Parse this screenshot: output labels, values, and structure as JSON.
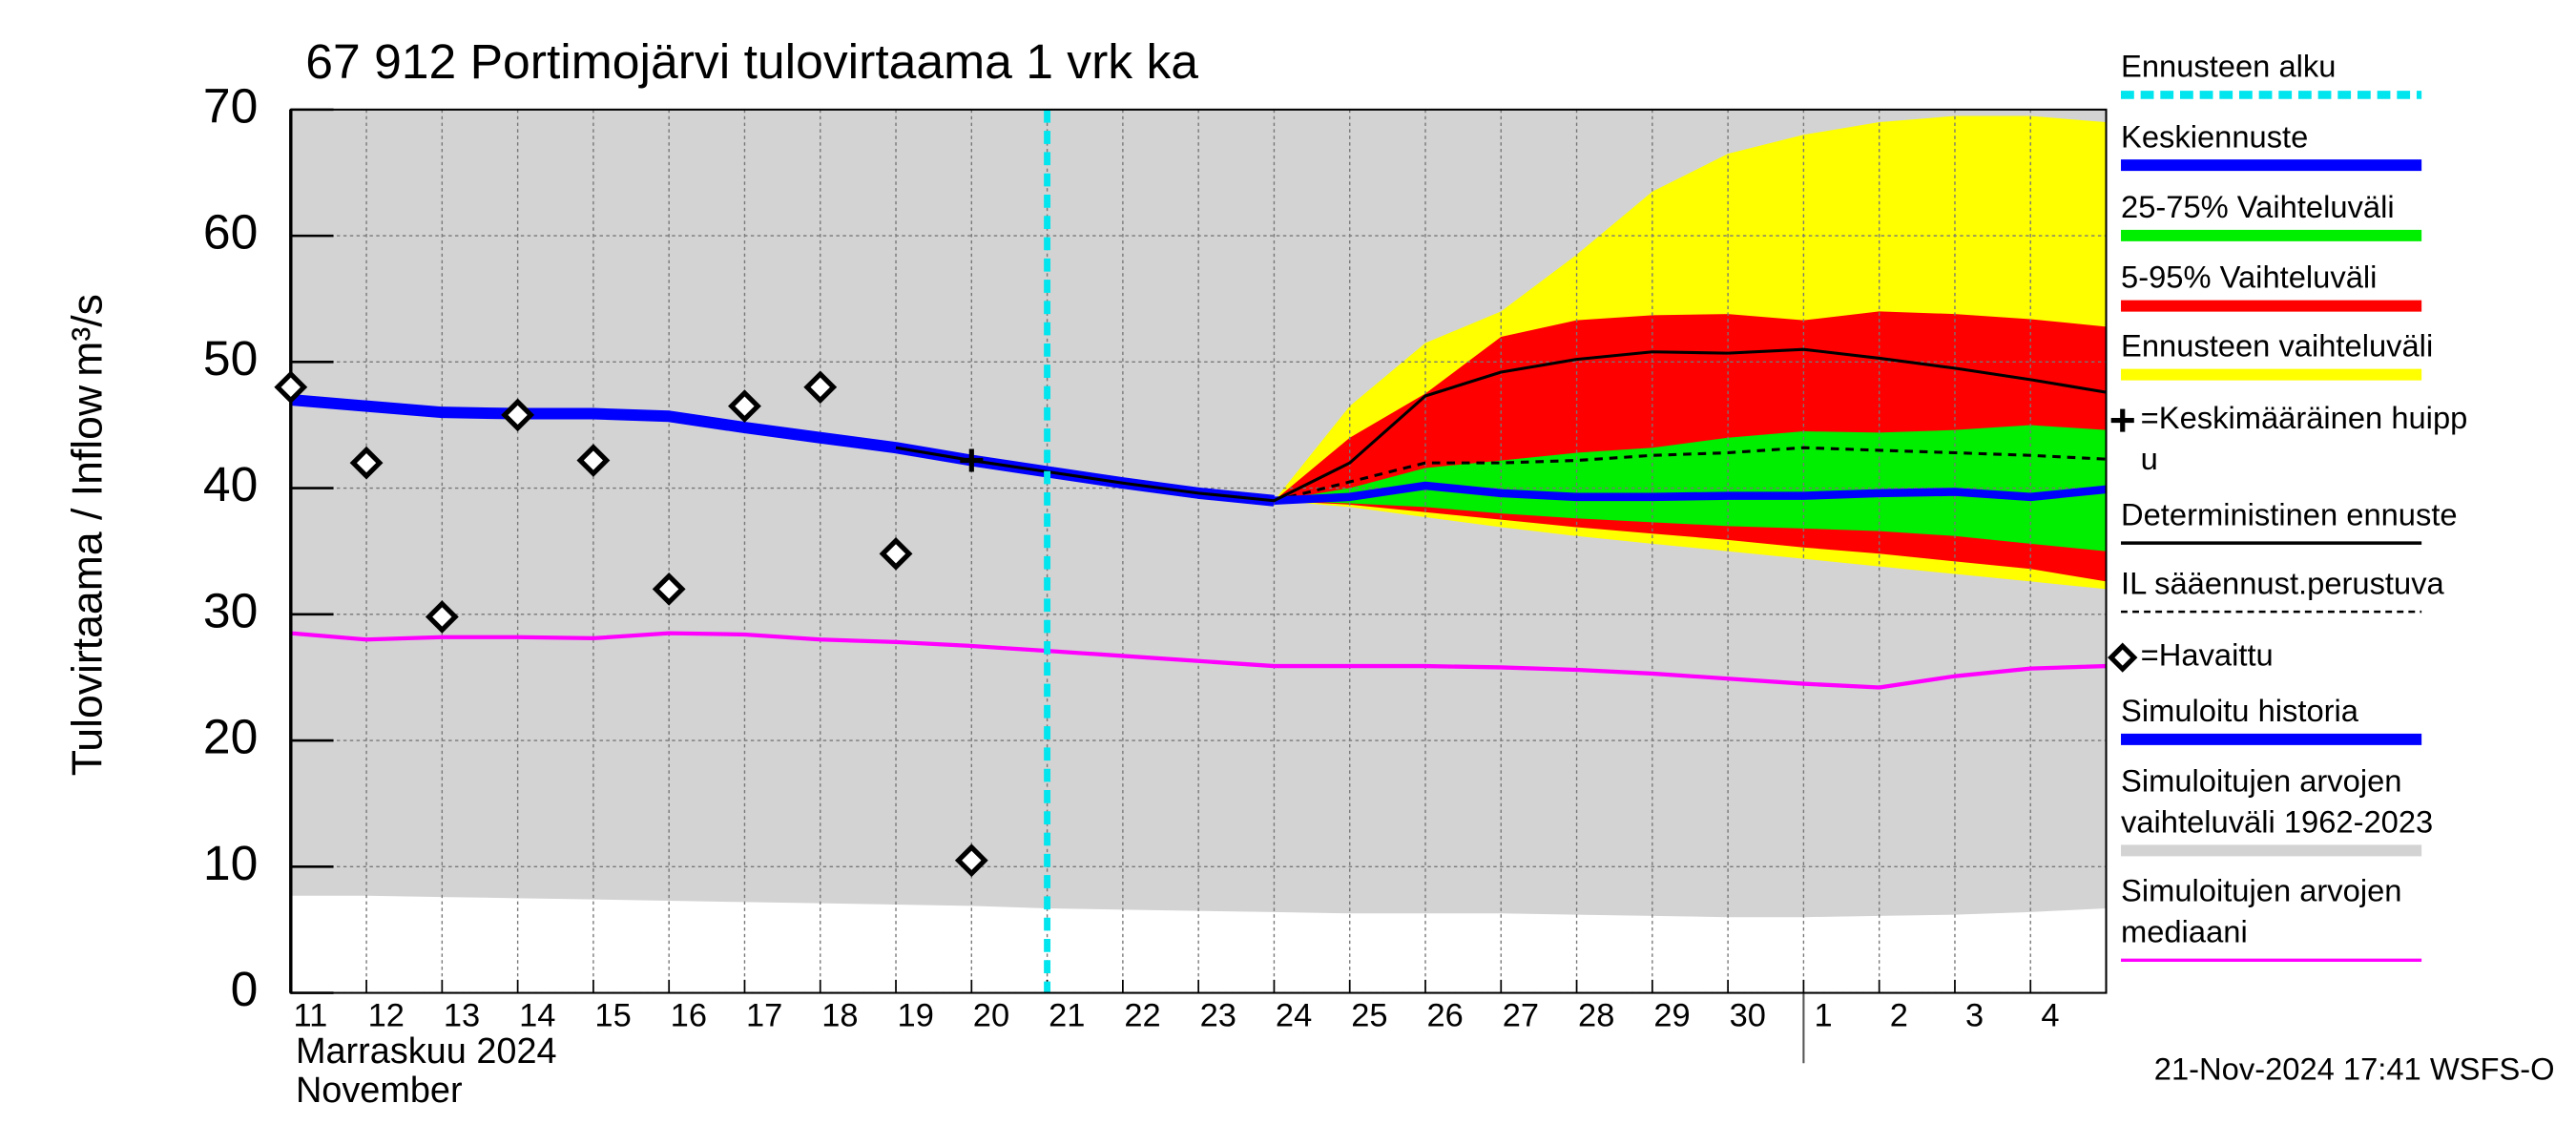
{
  "chart_data": {
    "type": "line",
    "title": "67 912 Portimojärvi tulovirtaama 1 vrk ka",
    "y_label": "Tulovirtaama / Inflow",
    "y_unit": "m³/s",
    "x_label_fi": "Marraskuu 2024",
    "x_label_en": "November",
    "footer": "21-Nov-2024 17:41 WSFS-O",
    "categories": [
      "11",
      "12",
      "13",
      "14",
      "15",
      "16",
      "17",
      "18",
      "19",
      "20",
      "21",
      "22",
      "23",
      "24",
      "25",
      "26",
      "27",
      "28",
      "29",
      "30",
      "1",
      "2",
      "3",
      "4",
      null
    ],
    "ylim": [
      0,
      70
    ],
    "yticks": [
      0,
      10,
      20,
      30,
      40,
      50,
      60,
      70
    ],
    "grid": true,
    "forecast_start": 10,
    "bands": [
      {
        "name": "Simuloitujen arvojen vaihteluväli 1962-2023",
        "color": "#d3d3d3",
        "lower": [
          7.7,
          7.7,
          7.6,
          7.5,
          7.4,
          7.3,
          7.2,
          7.1,
          7.0,
          6.9,
          6.7,
          6.6,
          6.5,
          6.4,
          6.3,
          6.3,
          6.3,
          6.2,
          6.1,
          6.0,
          6.0,
          6.1,
          6.2,
          6.4,
          6.7
        ],
        "upper": [
          70,
          70,
          70,
          70,
          70,
          70,
          70,
          70,
          70,
          70,
          70,
          70,
          70,
          70,
          70,
          70,
          70,
          70,
          70,
          70,
          70,
          70,
          70,
          70,
          70
        ]
      },
      {
        "name": "Ennusteen vaihteluväli",
        "color": "#ffff00",
        "lower": [
          null,
          null,
          null,
          null,
          null,
          null,
          null,
          null,
          null,
          null,
          null,
          null,
          null,
          39,
          38.5,
          37.7,
          36.9,
          36.2,
          35.6,
          35.0,
          34.4,
          33.8,
          33.2,
          32.6,
          32.0
        ],
        "upper": [
          null,
          null,
          null,
          null,
          null,
          null,
          null,
          null,
          null,
          null,
          null,
          null,
          null,
          39,
          46.5,
          51.5,
          54,
          58.5,
          63.5,
          66.5,
          68,
          69,
          69.5,
          69.5,
          69
        ]
      },
      {
        "name": "5-95% Vaihteluväli",
        "color": "#ff0000",
        "lower": [
          null,
          null,
          null,
          null,
          null,
          null,
          null,
          null,
          null,
          null,
          null,
          null,
          null,
          39,
          38.7,
          38.1,
          37.5,
          36.9,
          36.4,
          35.9,
          35.3,
          34.8,
          34.2,
          33.6,
          32.6
        ],
        "upper": [
          null,
          null,
          null,
          null,
          null,
          null,
          null,
          null,
          null,
          null,
          null,
          null,
          null,
          39,
          44,
          47.5,
          52,
          53.3,
          53.7,
          53.8,
          53.3,
          54,
          53.8,
          53.4,
          52.8
        ]
      },
      {
        "name": "25-75% Vaihteluväli",
        "color": "#00ee00",
        "lower": [
          null,
          null,
          null,
          null,
          null,
          null,
          null,
          null,
          null,
          null,
          null,
          null,
          null,
          39,
          38.8,
          38.5,
          38,
          37.6,
          37.3,
          37,
          36.8,
          36.6,
          36.2,
          35.6,
          35
        ],
        "upper": [
          null,
          null,
          null,
          null,
          null,
          null,
          null,
          null,
          null,
          null,
          null,
          null,
          null,
          39,
          40,
          41.6,
          42.2,
          42.8,
          43.2,
          44,
          44.5,
          44.4,
          44.6,
          45,
          44.6
        ]
      }
    ],
    "series": [
      {
        "name": "Simuloitujen arvojen mediaani",
        "color": "#ff00ff",
        "width": 2.5,
        "dash": null,
        "values": [
          28.5,
          28,
          28.2,
          28.2,
          28.1,
          28.5,
          28.4,
          28,
          27.8,
          27.5,
          27.1,
          26.7,
          26.3,
          25.9,
          25.9,
          25.9,
          25.8,
          25.6,
          25.3,
          24.9,
          24.5,
          24.2,
          25.1,
          25.7,
          25.9
        ]
      },
      {
        "name": "IL sääennust.perustuva",
        "color": "#000000",
        "width": 1.8,
        "dash": "5 4",
        "values": [
          null,
          null,
          null,
          null,
          null,
          null,
          null,
          null,
          null,
          null,
          null,
          null,
          null,
          39,
          40.5,
          42,
          42,
          42.2,
          42.6,
          42.8,
          43.2,
          43,
          42.8,
          42.6,
          42.3
        ]
      },
      {
        "name": "Simuloitu historia",
        "color": "#0000ff",
        "width": 7,
        "dash": null,
        "values": [
          47,
          46.5,
          46,
          45.9,
          45.9,
          45.7,
          44.8,
          44,
          43.2,
          42.2,
          41.3,
          40.4,
          39.6,
          39,
          null,
          null,
          null,
          null,
          null,
          null,
          null,
          null,
          null,
          null,
          null
        ]
      },
      {
        "name": "Keskiennuste",
        "color": "#0000ff",
        "width": 5,
        "dash": null,
        "values": [
          null,
          null,
          null,
          null,
          null,
          null,
          null,
          null,
          null,
          null,
          null,
          null,
          null,
          39,
          39.3,
          40.2,
          39.6,
          39.3,
          39.3,
          39.4,
          39.4,
          39.6,
          39.7,
          39.3,
          39.9
        ]
      },
      {
        "name": "Deterministinen ennuste",
        "color": "#000000",
        "width": 1.8,
        "dash": null,
        "values": [
          null,
          null,
          null,
          null,
          null,
          null,
          null,
          null,
          43.2,
          42.2,
          41.3,
          40.4,
          39.6,
          39,
          42,
          47.3,
          49.2,
          50.2,
          50.8,
          50.7,
          51,
          50.3,
          49.5,
          48.6,
          47.6
        ]
      }
    ],
    "observed": {
      "name": "Havaittu",
      "values": [
        48,
        42,
        29.8,
        45.8,
        42.2,
        32,
        46.5,
        48,
        34.8,
        10.5,
        null,
        null,
        null,
        null,
        null,
        null,
        null,
        null,
        null,
        null,
        null,
        null,
        null,
        null,
        null
      ]
    },
    "peak": {
      "name": "Keskimääräinen huippu",
      "values": [
        null,
        null,
        null,
        null,
        null,
        null,
        null,
        null,
        null,
        42.2,
        null,
        null,
        null,
        null,
        null,
        null,
        null,
        null,
        null,
        null,
        null,
        null,
        null,
        null,
        null
      ]
    },
    "legend": [
      {
        "lines": [
          "Ennusteen alku"
        ],
        "color": "#00e5ee",
        "style": "dashed"
      },
      {
        "lines": [
          "Keskiennuste"
        ],
        "color": "#0000ff",
        "style": "thick"
      },
      {
        "lines": [
          "25-75% Vaihteluväli"
        ],
        "color": "#00ee00",
        "style": "thick"
      },
      {
        "lines": [
          "5-95% Vaihteluväli"
        ],
        "color": "#ff0000",
        "style": "thick"
      },
      {
        "lines": [
          "Ennusteen vaihteluväli"
        ],
        "color": "#ffff00",
        "style": "thick"
      },
      {
        "lines": [
          "=Keskimääräinen huipp",
          "u"
        ],
        "color": "#000000",
        "style": "plus"
      },
      {
        "lines": [
          "Deterministinen ennuste"
        ],
        "color": "#000000",
        "style": "thin"
      },
      {
        "lines": [
          "IL sääennust.perustuva"
        ],
        "color": "#000000",
        "style": "dotted"
      },
      {
        "lines": [
          "=Havaittu"
        ],
        "color": "#000000",
        "style": "diamond"
      },
      {
        "lines": [
          "Simuloitu historia"
        ],
        "color": "#0000ff",
        "style": "thick"
      },
      {
        "lines": [
          "Simuloitujen arvojen",
          "vaihteluväli 1962-2023"
        ],
        "color": "#d3d3d3",
        "style": "thick"
      },
      {
        "lines": [
          "Simuloitujen arvojen",
          "mediaani"
        ],
        "color": "#ff00ff",
        "style": "thin"
      }
    ]
  }
}
